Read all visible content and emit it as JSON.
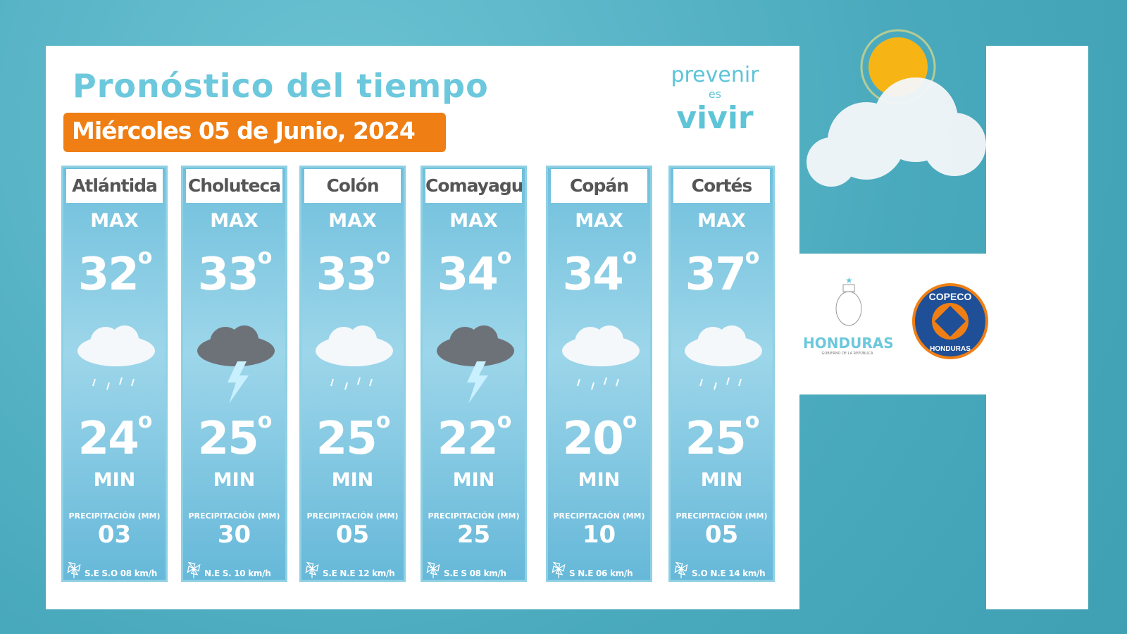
{
  "header": {
    "title": "Pronóstico del tiempo",
    "date": "Miércoles 05 de  Junio, 2024"
  },
  "brand": {
    "line1": "prevenir",
    "line2": "es",
    "line3": "vivir"
  },
  "labels": {
    "max": "MAX",
    "min": "MIN",
    "precip": "PRECIPITACIÓN (MM)"
  },
  "departments": [
    {
      "name": "Atlántida",
      "max": "32",
      "min": "24",
      "precip": "03",
      "wind": "S.E  S.O 08  km/h",
      "icon": "cloud-rain"
    },
    {
      "name": "Choluteca",
      "max": "33",
      "min": "25",
      "precip": "30",
      "wind": "N.E  S. 10 km/h",
      "icon": "thunderstorm"
    },
    {
      "name": "Colón",
      "max": "33",
      "min": "25",
      "precip": "05",
      "wind": "S.E  N.E  12  km/h",
      "icon": "cloud-rain"
    },
    {
      "name": "Comayagua",
      "max": "34",
      "min": "22",
      "precip": "25",
      "wind": "S.E  S 08  km/h",
      "icon": "thunderstorm"
    },
    {
      "name": "Copán",
      "max": "34",
      "min": "20",
      "precip": "10",
      "wind": "S   N.E 06 km/h",
      "icon": "cloud-rain"
    },
    {
      "name": "Cortés",
      "max": "37",
      "min": "25",
      "precip": "05",
      "wind": "S.O  N.E 14 km/h",
      "icon": "cloud-rain"
    }
  ],
  "logos": {
    "honduras": "HONDURAS",
    "honduras_sub": "GOBIERNO DE LA REPÚBLICA",
    "copeco": "COPECO HONDURAS"
  },
  "colors": {
    "accent": "#ef7f14",
    "title": "#6cc8dc",
    "copeco_blue": "#1f4f97"
  }
}
